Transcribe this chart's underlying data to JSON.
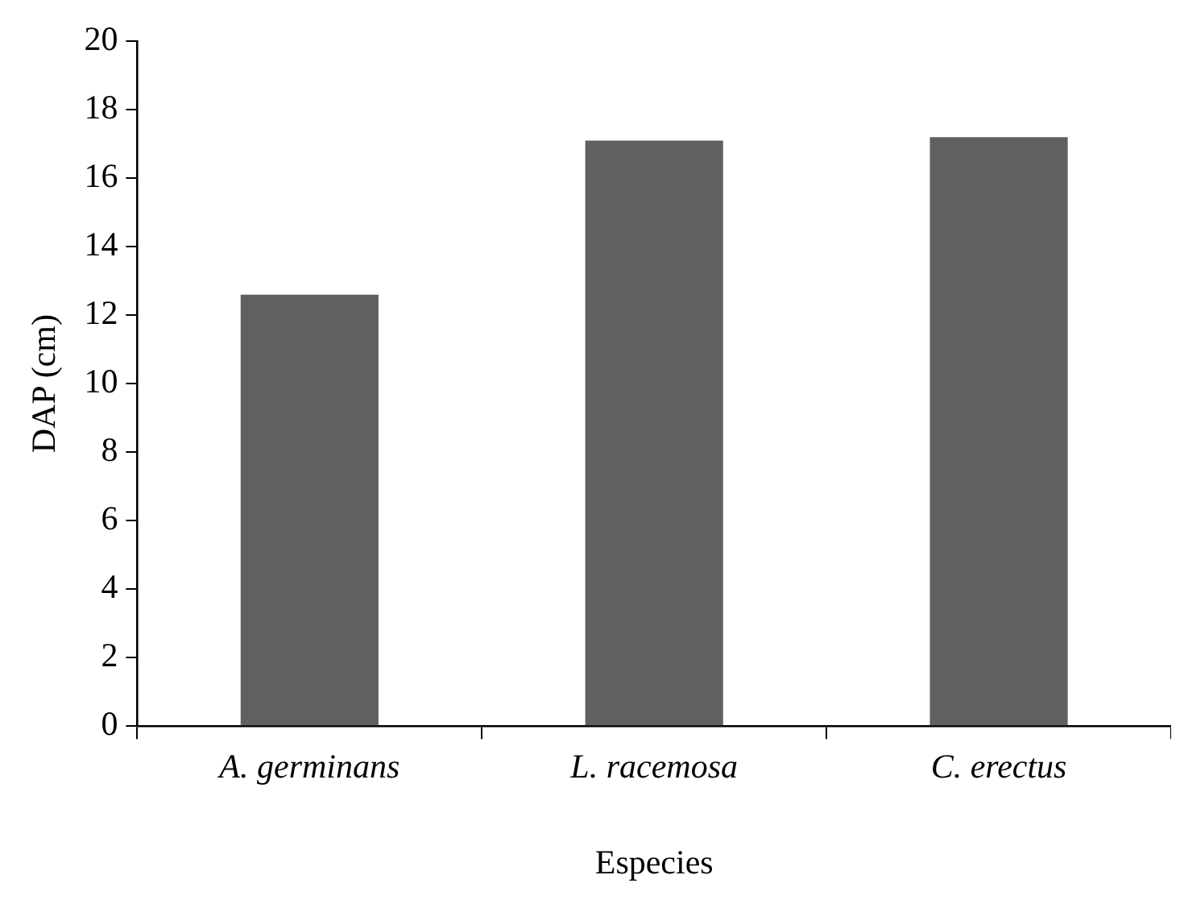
{
  "chart_data": {
    "type": "bar",
    "xlabel": "Especies",
    "ylabel": "DAP (cm)",
    "categories": [
      "A. germinans",
      "L. racemosa",
      "C. erectus"
    ],
    "values": [
      12.6,
      17.1,
      17.2
    ],
    "color": "#606060",
    "ylim": [
      0,
      20
    ],
    "yticks": [
      0,
      2,
      4,
      6,
      8,
      10,
      12,
      14,
      16,
      18,
      20
    ]
  }
}
